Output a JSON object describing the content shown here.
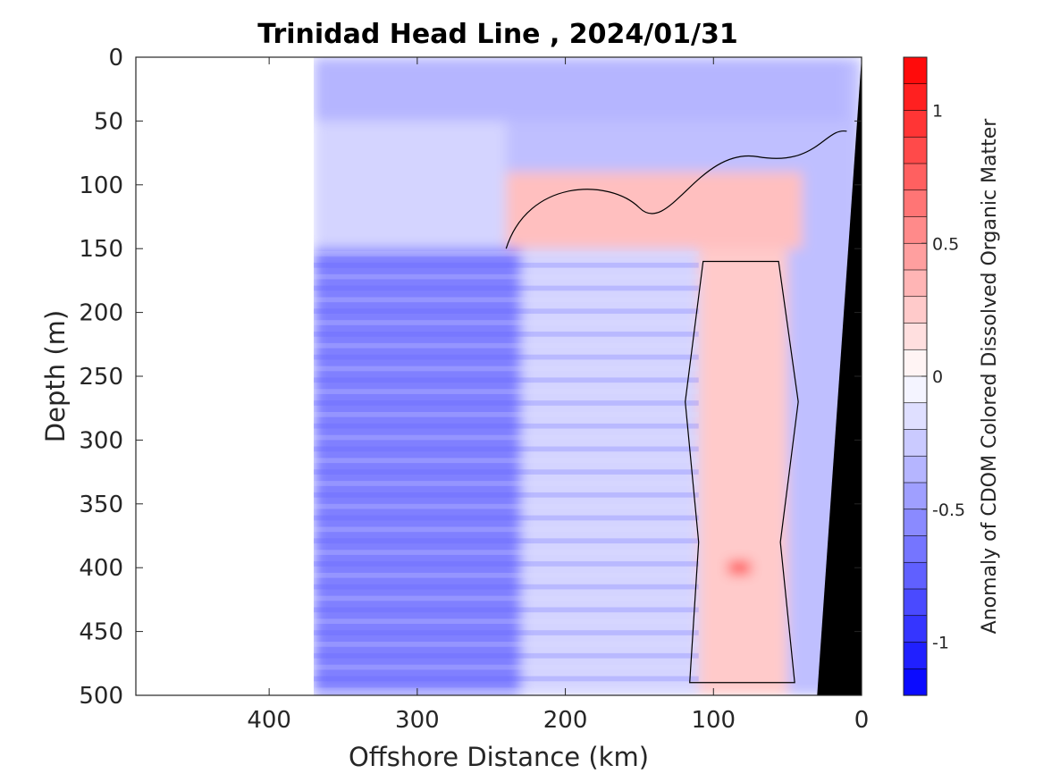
{
  "chart_data": {
    "type": "heatmap",
    "title": "Trinidad Head Line , 2024/01/31",
    "xlabel": "Offshore Distance (km)",
    "ylabel": "Depth (m)",
    "colorbar_label": "Anomaly of CDOM Colored Dissolved Organic Matter",
    "xlim": [
      490,
      0
    ],
    "ylim": [
      0,
      500
    ],
    "x_direction": "reversed",
    "y_direction": "depth increasing downward",
    "xticks": [
      400,
      300,
      200,
      100,
      0
    ],
    "yticks": [
      0,
      50,
      100,
      150,
      200,
      250,
      300,
      350,
      400,
      450,
      500
    ],
    "clim": [
      -1.2,
      1.2
    ],
    "colorbar_ticks": [
      1,
      0.5,
      0,
      -0.5,
      -1
    ],
    "colormap": {
      "negative": "#0000ff",
      "zero": "#ffffff",
      "positive": "#ff0000"
    },
    "data_extent_km": [
      0,
      370
    ],
    "zero_contour": true,
    "regions": [
      {
        "depth_range_m": [
          0,
          150
        ],
        "x_range_km": [
          240,
          370
        ],
        "anomaly": -0.2
      },
      {
        "depth_range_m": [
          0,
          50
        ],
        "x_range_km": [
          10,
          370
        ],
        "anomaly": -0.35
      },
      {
        "depth_range_m": [
          90,
          150
        ],
        "x_range_km": [
          40,
          240
        ],
        "anomaly": 0.3
      },
      {
        "depth_range_m": [
          150,
          500
        ],
        "x_range_km": [
          230,
          370
        ],
        "anomaly": -0.6
      },
      {
        "depth_range_m": [
          150,
          500
        ],
        "x_range_km": [
          110,
          230
        ],
        "anomaly": -0.2
      },
      {
        "depth_range_m": [
          150,
          500
        ],
        "x_range_km": [
          50,
          110
        ],
        "anomaly": 0.25
      },
      {
        "depth_range_m": [
          395,
          405
        ],
        "x_range_km": [
          75,
          90
        ],
        "anomaly": 0.9
      }
    ],
    "seafloor": {
      "color": "#000000",
      "x_km_at_depth": [
        [
          0,
          0
        ],
        [
          500,
          30
        ]
      ]
    }
  },
  "axes": {
    "x_ticks": [
      "400",
      "300",
      "200",
      "100",
      "0"
    ],
    "y_ticks": [
      "0",
      "50",
      "100",
      "150",
      "200",
      "250",
      "300",
      "350",
      "400",
      "450",
      "500"
    ],
    "colorbar_ticks": [
      "1",
      "0.5",
      "0",
      "-0.5",
      "-1"
    ]
  }
}
